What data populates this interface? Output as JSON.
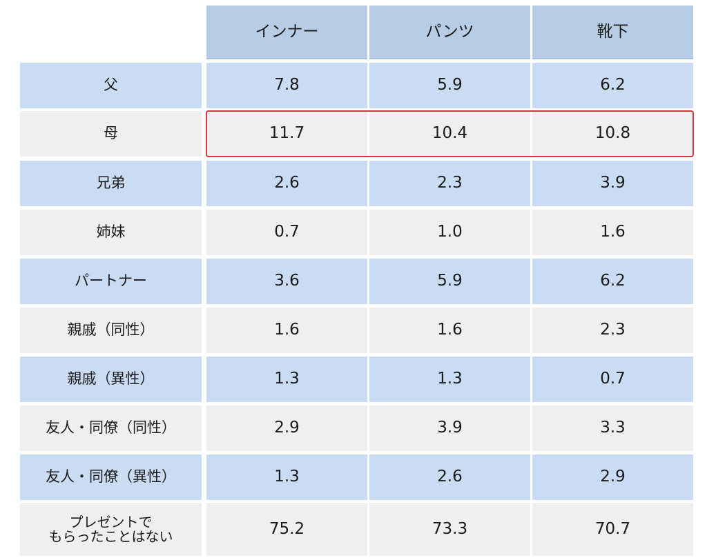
{
  "chart_data": {
    "type": "table",
    "columns": [
      "インナー",
      "パンツ",
      "靴下"
    ],
    "rows": [
      {
        "label": "父",
        "values": [
          "7.8",
          "5.9",
          "6.2"
        ]
      },
      {
        "label": "母",
        "values": [
          "11.7",
          "10.4",
          "10.8"
        ],
        "highlighted": true
      },
      {
        "label": "兄弟",
        "values": [
          "2.6",
          "2.3",
          "3.9"
        ]
      },
      {
        "label": "姉妹",
        "values": [
          "0.7",
          "1.0",
          "1.6"
        ]
      },
      {
        "label": "パートナー",
        "values": [
          "3.6",
          "5.9",
          "6.2"
        ]
      },
      {
        "label": "親戚（同性）",
        "values": [
          "1.6",
          "1.6",
          "2.3"
        ]
      },
      {
        "label": "親戚（異性）",
        "values": [
          "1.3",
          "1.3",
          "0.7"
        ]
      },
      {
        "label": "友人・同僚（同性）",
        "values": [
          "2.9",
          "3.9",
          "3.3"
        ]
      },
      {
        "label": "友人・同僚（異性）",
        "values": [
          "1.3",
          "2.6",
          "2.9"
        ]
      },
      {
        "label": "プレゼントで\nもらったことはない",
        "label_lines": [
          "プレゼントで",
          "もらったことはない"
        ],
        "values": [
          "75.2",
          "73.3",
          "70.7"
        ]
      }
    ],
    "highlight_color": "#d23a3f",
    "row_colors": [
      "#c9dcf4",
      "#efefef"
    ],
    "header_color": "#b7cde6"
  }
}
